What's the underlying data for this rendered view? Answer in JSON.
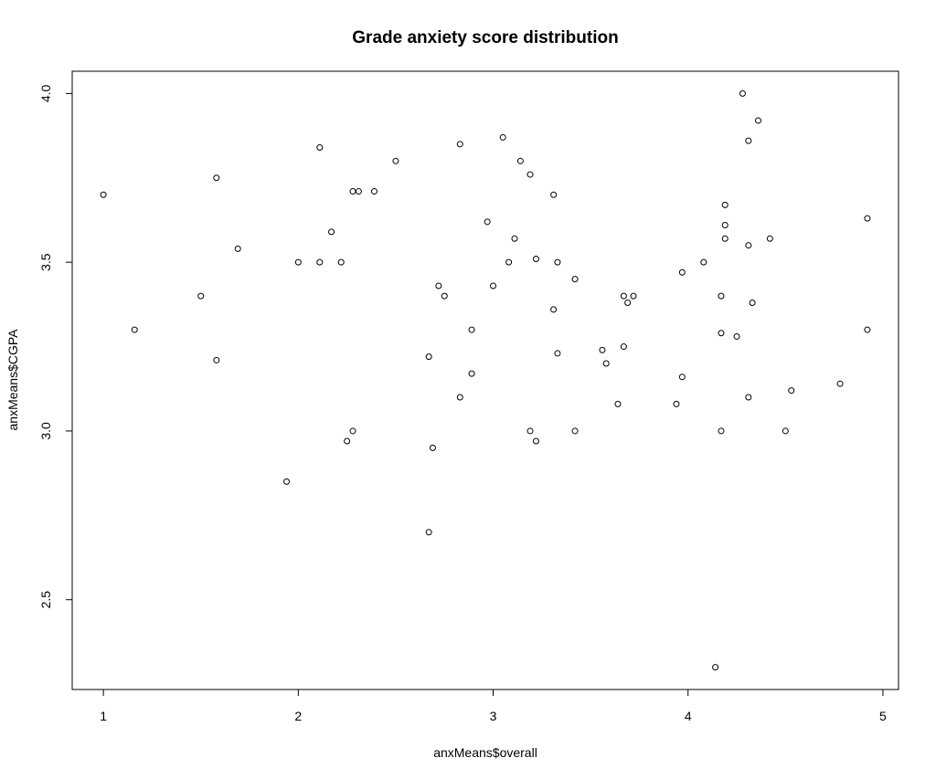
{
  "chart_data": {
    "type": "scatter",
    "title": "Grade anxiety score distribution",
    "xlabel": "anxMeans$overall",
    "ylabel": "anxMeans$CGPA",
    "xlim": [
      0.84,
      5.08
    ],
    "ylim": [
      2.234,
      4.066
    ],
    "x_ticks": [
      1,
      2,
      3,
      4,
      5
    ],
    "x_tick_labels": [
      "1",
      "2",
      "3",
      "4",
      "5"
    ],
    "y_ticks": [
      2.5,
      3.0,
      3.5,
      4.0
    ],
    "y_tick_labels": [
      "2.5",
      "3.0",
      "3.5",
      "4.0"
    ],
    "grid": false,
    "legend": "none",
    "marker": "open-circle",
    "colors": {
      "points": "#000000",
      "axes": "#000000",
      "background": "#ffffff"
    },
    "points": [
      {
        "x": 1.0,
        "y": 3.7
      },
      {
        "x": 1.16,
        "y": 3.3
      },
      {
        "x": 1.5,
        "y": 3.4
      },
      {
        "x": 1.58,
        "y": 3.75
      },
      {
        "x": 1.58,
        "y": 3.21
      },
      {
        "x": 1.69,
        "y": 3.54
      },
      {
        "x": 1.94,
        "y": 2.85
      },
      {
        "x": 2.0,
        "y": 3.5
      },
      {
        "x": 2.11,
        "y": 3.84
      },
      {
        "x": 2.11,
        "y": 3.5
      },
      {
        "x": 2.17,
        "y": 3.59
      },
      {
        "x": 2.22,
        "y": 3.5
      },
      {
        "x": 2.25,
        "y": 2.97
      },
      {
        "x": 2.28,
        "y": 3.71
      },
      {
        "x": 2.28,
        "y": 3.0
      },
      {
        "x": 2.31,
        "y": 3.71
      },
      {
        "x": 2.39,
        "y": 3.71
      },
      {
        "x": 2.5,
        "y": 3.8
      },
      {
        "x": 2.67,
        "y": 3.22
      },
      {
        "x": 2.67,
        "y": 2.7
      },
      {
        "x": 2.69,
        "y": 2.95
      },
      {
        "x": 2.72,
        "y": 3.43
      },
      {
        "x": 2.75,
        "y": 3.4
      },
      {
        "x": 2.83,
        "y": 3.85
      },
      {
        "x": 2.83,
        "y": 3.1
      },
      {
        "x": 2.89,
        "y": 3.3
      },
      {
        "x": 2.89,
        "y": 3.17
      },
      {
        "x": 2.97,
        "y": 3.62
      },
      {
        "x": 3.0,
        "y": 3.43
      },
      {
        "x": 3.05,
        "y": 3.87
      },
      {
        "x": 3.08,
        "y": 3.5
      },
      {
        "x": 3.11,
        "y": 3.57
      },
      {
        "x": 3.14,
        "y": 3.8
      },
      {
        "x": 3.19,
        "y": 3.76
      },
      {
        "x": 3.19,
        "y": 3.0
      },
      {
        "x": 3.22,
        "y": 3.51
      },
      {
        "x": 3.22,
        "y": 2.97
      },
      {
        "x": 3.31,
        "y": 3.7
      },
      {
        "x": 3.31,
        "y": 3.36
      },
      {
        "x": 3.33,
        "y": 3.5
      },
      {
        "x": 3.33,
        "y": 3.23
      },
      {
        "x": 3.42,
        "y": 3.45
      },
      {
        "x": 3.42,
        "y": 3.0
      },
      {
        "x": 3.56,
        "y": 3.24
      },
      {
        "x": 3.58,
        "y": 3.2
      },
      {
        "x": 3.64,
        "y": 3.08
      },
      {
        "x": 3.67,
        "y": 3.4
      },
      {
        "x": 3.67,
        "y": 3.25
      },
      {
        "x": 3.69,
        "y": 3.38
      },
      {
        "x": 3.72,
        "y": 3.4
      },
      {
        "x": 3.94,
        "y": 3.08
      },
      {
        "x": 3.97,
        "y": 3.47
      },
      {
        "x": 3.97,
        "y": 3.16
      },
      {
        "x": 4.08,
        "y": 3.5
      },
      {
        "x": 4.14,
        "y": 2.3
      },
      {
        "x": 4.17,
        "y": 3.4
      },
      {
        "x": 4.17,
        "y": 3.29
      },
      {
        "x": 4.17,
        "y": 3.0
      },
      {
        "x": 4.19,
        "y": 3.67
      },
      {
        "x": 4.19,
        "y": 3.61
      },
      {
        "x": 4.19,
        "y": 3.57
      },
      {
        "x": 4.25,
        "y": 3.28
      },
      {
        "x": 4.28,
        "y": 4.0
      },
      {
        "x": 4.31,
        "y": 3.86
      },
      {
        "x": 4.31,
        "y": 3.55
      },
      {
        "x": 4.31,
        "y": 3.1
      },
      {
        "x": 4.33,
        "y": 3.38
      },
      {
        "x": 4.36,
        "y": 3.92
      },
      {
        "x": 4.42,
        "y": 3.57
      },
      {
        "x": 4.5,
        "y": 3.0
      },
      {
        "x": 4.53,
        "y": 3.12
      },
      {
        "x": 4.78,
        "y": 3.14
      },
      {
        "x": 4.92,
        "y": 3.63
      },
      {
        "x": 4.92,
        "y": 3.3
      }
    ]
  }
}
